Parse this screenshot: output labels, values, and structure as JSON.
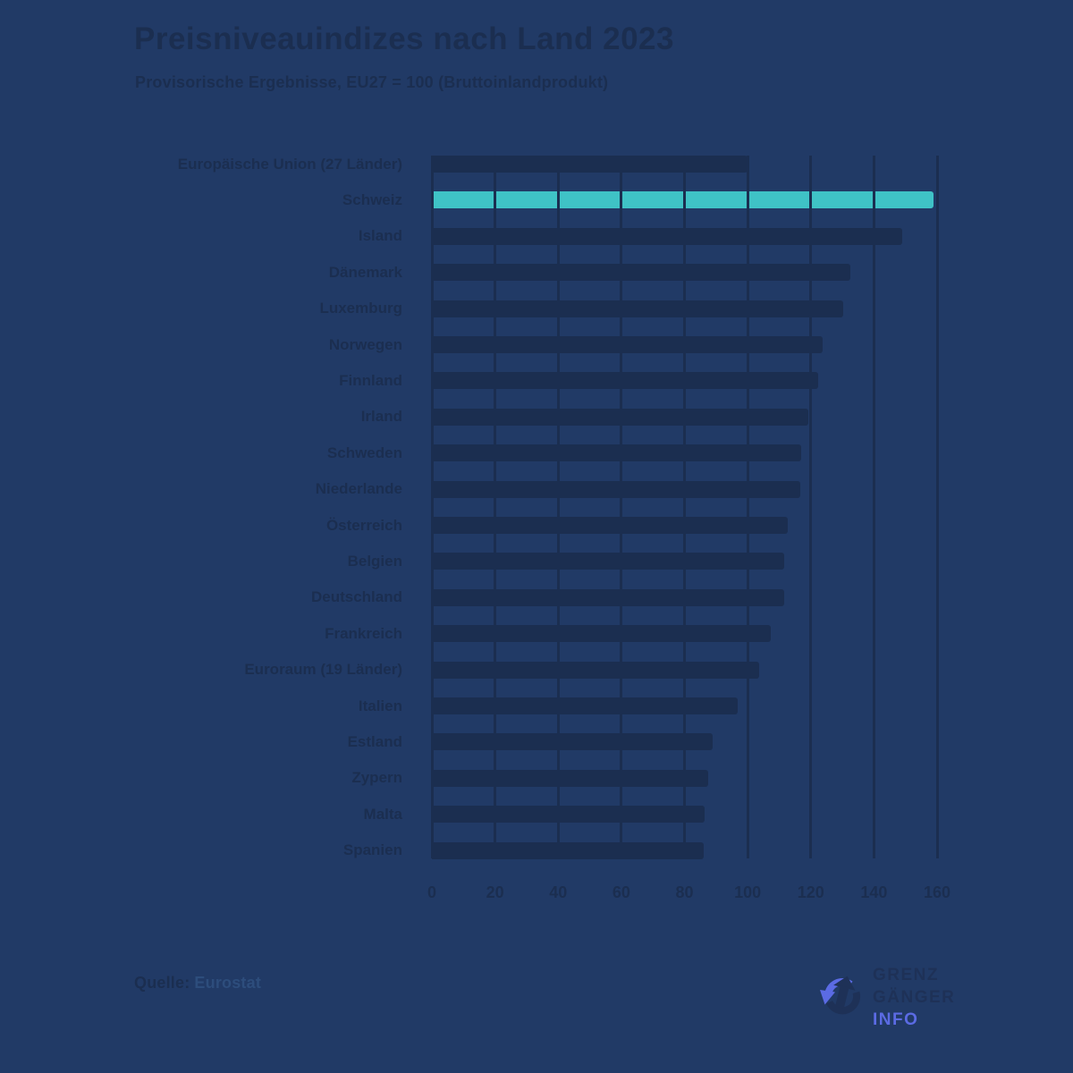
{
  "title": "Preisniveauindizes nach Land 2023",
  "subtitle": "Provisorische Ergebnisse, EU27 = 100 (Bruttoinlandprodukt)",
  "chart_data": {
    "type": "bar",
    "orientation": "horizontal",
    "title": "Preisniveauindizes nach Land 2023",
    "subtitle": "Provisorische Ergebnisse, EU27 = 100 (Bruttoinlandprodukt)",
    "categories": [
      "Europäische Union (27 Länder)",
      "Schweiz",
      "Island",
      "Dänemark",
      "Luxemburg",
      "Norwegen",
      "Finnland",
      "Irland",
      "Schweden",
      "Niederlande",
      "Österreich",
      "Belgien",
      "Deutschland",
      "Frankreich",
      "Euroraum (19 Länder)",
      "Italien",
      "Estland",
      "Zypern",
      "Malta",
      "Spanien"
    ],
    "values": [
      100.0,
      158.8,
      149.0,
      132.4,
      130.2,
      123.7,
      122.2,
      119.3,
      117.0,
      116.6,
      112.7,
      111.7,
      111.5,
      107.3,
      103.6,
      96.9,
      88.9,
      87.6,
      86.5,
      86.2
    ],
    "highlight": {
      "category": "Schweiz",
      "index": 1
    },
    "xlim": [
      0,
      160
    ],
    "xticks": [
      0,
      20,
      40,
      60,
      80,
      100,
      120,
      140,
      160
    ],
    "grid": "vertical-on-top-of-bars",
    "legend": "none",
    "unit": "EU27 = 100"
  },
  "colors": {
    "background": "#213a66",
    "bar": "#1b2e50",
    "highlight_bar": "#3fc2c6",
    "gridline": "#1b2e50",
    "text": "#1b2e50",
    "source_value": "#2d4d7c",
    "logo_text": "#1e3157",
    "logo_accent": "#5b6be4"
  },
  "source": {
    "label": "Quelle:",
    "value": "Eurostat"
  },
  "logo": {
    "icon": "cycle-arrow-icon",
    "line1": "GRENZ",
    "line2": "GÄNGER",
    "line3": "INFO"
  }
}
